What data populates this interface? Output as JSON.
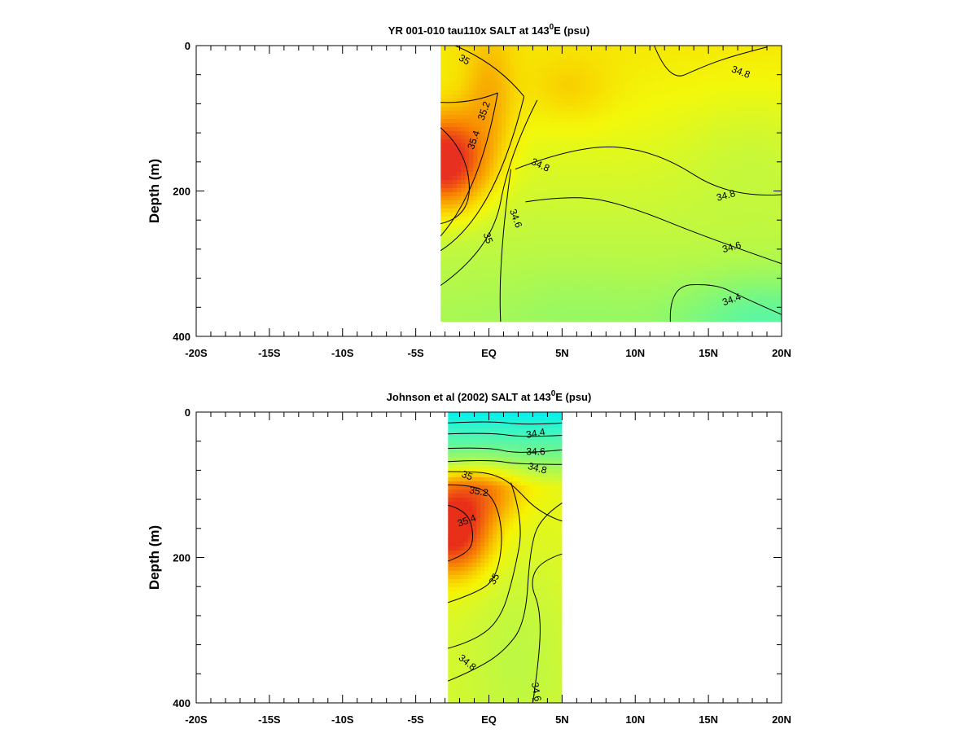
{
  "chart_data": [
    {
      "type": "heatmap",
      "title_prefix": "YR 001-010 tau110x SALT at 143",
      "title_sup": "0",
      "title_suffix": "E (psu)",
      "ylabel": "Depth (m)",
      "xlabel": "",
      "xlim": [
        -20,
        20
      ],
      "ylim": [
        400,
        0
      ],
      "y_inverted": true,
      "xticks": [
        {
          "v": -20,
          "label": "-20S"
        },
        {
          "v": -15,
          "label": "-15S"
        },
        {
          "v": -10,
          "label": "-10S"
        },
        {
          "v": -5,
          "label": "-5S"
        },
        {
          "v": 0,
          "label": "EQ"
        },
        {
          "v": 5,
          "label": "5N"
        },
        {
          "v": 10,
          "label": "10N"
        },
        {
          "v": 15,
          "label": "15N"
        },
        {
          "v": 20,
          "label": "20N"
        }
      ],
      "yticks": [
        {
          "v": 0,
          "label": "0"
        },
        {
          "v": 200,
          "label": "200"
        },
        {
          "v": 400,
          "label": "400"
        }
      ],
      "data_extent": {
        "x": [
          -3.3,
          20
        ],
        "y": [
          0,
          380
        ]
      },
      "colorscale": [
        {
          "v": 34.3,
          "color": "#44f7c8"
        },
        {
          "v": 34.45,
          "color": "#62f79a"
        },
        {
          "v": 34.6,
          "color": "#8ff86a"
        },
        {
          "v": 34.75,
          "color": "#c4f83c"
        },
        {
          "v": 34.85,
          "color": "#f3f80a"
        },
        {
          "v": 34.95,
          "color": "#f8d800"
        },
        {
          "v": 35.05,
          "color": "#f8b000"
        },
        {
          "v": 35.2,
          "color": "#f88000"
        },
        {
          "v": 35.3,
          "color": "#f05a10"
        },
        {
          "v": 35.45,
          "color": "#e83020"
        }
      ],
      "features": [
        {
          "x": 0,
          "y": 80,
          "sx": 1.8,
          "sy": 90,
          "a": 0.2
        },
        {
          "x": -3,
          "y": 160,
          "sx": 2.5,
          "sy": 60,
          "a": 0.75
        },
        {
          "x": 5.5,
          "y": 60,
          "sx": 3,
          "sy": 45,
          "a": 0.1
        },
        {
          "x": 18,
          "y": 140,
          "sx": 5,
          "sy": 90,
          "a": -0.05
        },
        {
          "x": 19,
          "y": 380,
          "sx": 6,
          "sy": 60,
          "a": -0.25
        },
        {
          "x": 6,
          "y": 360,
          "sx": 5,
          "sy": 60,
          "a": -0.05
        }
      ],
      "field_base": {
        "top": 34.9,
        "gradient": -0.0006
      },
      "contours": [
        {
          "label": "35",
          "points": [
            [
              -2.3,
              0
            ],
            [
              0.6,
              25
            ],
            [
              2.4,
              70
            ]
          ]
        },
        {
          "label": "35.2",
          "points": [
            [
              -3.3,
              78
            ],
            [
              -1.2,
              80
            ],
            [
              0.6,
              65
            ]
          ]
        },
        {
          "label": "35.4",
          "points": [
            [
              -3.3,
              113
            ],
            [
              -1.5,
              145
            ],
            [
              -1.2,
              235
            ],
            [
              -3.3,
              245
            ]
          ]
        },
        {
          "label": "35.2",
          "points": [
            [
              0.6,
              65
            ],
            [
              -0.6,
              200
            ],
            [
              -3.3,
              262
            ]
          ]
        },
        {
          "label": "35",
          "points": [
            [
              2.4,
              70
            ],
            [
              0.4,
              235
            ],
            [
              -3.3,
              282
            ]
          ]
        },
        {
          "label": "34.8",
          "points": [
            [
              3.3,
              75
            ],
            [
              1.4,
              150
            ],
            [
              0.2,
              280
            ],
            [
              -3.3,
              330
            ]
          ]
        },
        {
          "label": "34.6",
          "points": [
            [
              1.5,
              170
            ],
            [
              0.6,
              300
            ],
            [
              0.8,
              380
            ]
          ]
        },
        {
          "label": "34.8",
          "points": [
            [
              1.8,
              170
            ],
            [
              6.3,
              135
            ],
            [
              11.5,
              145
            ],
            [
              16.5,
              210
            ],
            [
              20,
              205
            ]
          ]
        },
        {
          "label": "34.8",
          "points": [
            [
              11.3,
              0
            ],
            [
              12.3,
              50
            ],
            [
              14.5,
              30
            ],
            [
              16.5,
              15
            ],
            [
              19,
              2
            ]
          ]
        },
        {
          "label": "34.6",
          "points": [
            [
              2.5,
              215
            ],
            [
              5.8,
              205
            ],
            [
              9.5,
              220
            ],
            [
              15,
              265
            ],
            [
              20,
              300
            ]
          ]
        },
        {
          "label": "34.4",
          "points": [
            [
              12.4,
              380
            ],
            [
              12.3,
              330
            ],
            [
              15.5,
              328
            ],
            [
              17.2,
              345
            ],
            [
              20,
              370
            ]
          ]
        }
      ],
      "contour_labels": [
        {
          "text": "35",
          "x": -1.7,
          "y": 20,
          "rot": 30
        },
        {
          "text": "35.2",
          "x": -0.3,
          "y": 90,
          "rot": -70
        },
        {
          "text": "35.4",
          "x": -1.0,
          "y": 130,
          "rot": -70
        },
        {
          "text": "34.8",
          "x": 3.5,
          "y": 165,
          "rot": 25
        },
        {
          "text": "34.6",
          "x": 1.8,
          "y": 238,
          "rot": 70
        },
        {
          "text": "35",
          "x": -0.1,
          "y": 265,
          "rot": 70
        },
        {
          "text": "34.8",
          "x": 16.2,
          "y": 207,
          "rot": -15
        },
        {
          "text": "34.8",
          "x": 17.2,
          "y": 37,
          "rot": 20
        },
        {
          "text": "34.6",
          "x": 16.6,
          "y": 278,
          "rot": -15
        },
        {
          "text": "34.4",
          "x": 16.6,
          "y": 350,
          "rot": -20
        }
      ]
    },
    {
      "type": "heatmap",
      "title_prefix": "Johnson et al (2002) SALT at 143",
      "title_sup": "0",
      "title_suffix": "E (psu)",
      "ylabel": "Depth (m)",
      "xlabel": "",
      "xlim": [
        -20,
        20
      ],
      "ylim": [
        400,
        0
      ],
      "y_inverted": true,
      "xticks": [
        {
          "v": -20,
          "label": "-20S"
        },
        {
          "v": -15,
          "label": "-15S"
        },
        {
          "v": -10,
          "label": "-10S"
        },
        {
          "v": -5,
          "label": "-5S"
        },
        {
          "v": 0,
          "label": "EQ"
        },
        {
          "v": 5,
          "label": "5N"
        },
        {
          "v": 10,
          "label": "10N"
        },
        {
          "v": 15,
          "label": "15N"
        },
        {
          "v": 20,
          "label": "20N"
        }
      ],
      "yticks": [
        {
          "v": 0,
          "label": "0"
        },
        {
          "v": 200,
          "label": "200"
        },
        {
          "v": 400,
          "label": "400"
        }
      ],
      "data_extent": {
        "x": [
          -2.8,
          5
        ],
        "y": [
          0,
          400
        ]
      },
      "colorscale": [
        {
          "v": 34.1,
          "color": "#00f0f0"
        },
        {
          "v": 34.3,
          "color": "#40f5c0"
        },
        {
          "v": 34.5,
          "color": "#6ff78e"
        },
        {
          "v": 34.65,
          "color": "#a4f85a"
        },
        {
          "v": 34.8,
          "color": "#d8f82a"
        },
        {
          "v": 34.9,
          "color": "#f6f400"
        },
        {
          "v": 35.0,
          "color": "#f8cc00"
        },
        {
          "v": 35.15,
          "color": "#f89000"
        },
        {
          "v": 35.3,
          "color": "#f06010"
        },
        {
          "v": 35.45,
          "color": "#e83018"
        }
      ],
      "features": [
        {
          "x": -2.5,
          "y": 160,
          "sx": 2.5,
          "sy": 60,
          "a": 0.75
        },
        {
          "x": 0,
          "y": 110,
          "sx": 2.5,
          "sy": 40,
          "a": 0.25
        },
        {
          "x": 2.0,
          "y": 320,
          "sx": 3.5,
          "sy": 130,
          "a": -0.08
        }
      ],
      "field_base": {
        "top": 34.1,
        "gradient": 0.0072,
        "cap": 34.85,
        "deep_gradient": -0.0002
      },
      "contours": [
        {
          "label": "34.4",
          "points": [
            [
              -2.8,
              15
            ],
            [
              0,
              12
            ],
            [
              2.5,
              18
            ],
            [
              5,
              15
            ]
          ]
        },
        {
          "label": "34.4",
          "points": [
            [
              -2.8,
              30
            ],
            [
              0,
              28
            ],
            [
              2.5,
              35
            ],
            [
              5,
              32
            ]
          ]
        },
        {
          "label": "34.6",
          "points": [
            [
              -2.8,
              50
            ],
            [
              0,
              48
            ],
            [
              2,
              58
            ],
            [
              5,
              52
            ]
          ]
        },
        {
          "label": "34.8",
          "points": [
            [
              -2.8,
              68
            ],
            [
              0,
              65
            ],
            [
              2,
              72
            ],
            [
              5,
              72
            ]
          ]
        },
        {
          "label": "35",
          "points": [
            [
              -2.8,
              82
            ],
            [
              -1,
              82
            ],
            [
              0.2,
              85
            ],
            [
              1.5,
              97
            ],
            [
              3.5,
              140
            ],
            [
              5,
              150
            ]
          ]
        },
        {
          "label": "35.2",
          "points": [
            [
              -2.8,
              100
            ],
            [
              -1,
              100
            ],
            [
              0.4,
              118
            ],
            [
              1.0,
              170
            ],
            [
              0.5,
              230
            ],
            [
              -1,
              250
            ],
            [
              -2.8,
              262
            ]
          ]
        },
        {
          "label": "35.4",
          "points": [
            [
              -2.8,
              128
            ],
            [
              -1.5,
              135
            ],
            [
              -1.0,
              170
            ],
            [
              -1.4,
              195
            ],
            [
              -2.8,
              205
            ]
          ]
        },
        {
          "label": "35",
          "points": [
            [
              1.5,
              97
            ],
            [
              2.4,
              150
            ],
            [
              1.7,
              225
            ],
            [
              0.8,
              285
            ],
            [
              -1,
              315
            ],
            [
              -2.8,
              325
            ]
          ]
        },
        {
          "label": "34.8",
          "points": [
            [
              5,
              125
            ],
            [
              3.5,
              145
            ],
            [
              2.8,
              190
            ],
            [
              2.5,
              290
            ],
            [
              1.0,
              330
            ],
            [
              -1,
              355
            ],
            [
              -2.8,
              370
            ]
          ]
        },
        {
          "label": "34.6",
          "points": [
            [
              5,
              195
            ],
            [
              3.5,
              205
            ],
            [
              2.8,
              235
            ],
            [
              3.5,
              270
            ],
            [
              3.5,
              330
            ],
            [
              3.0,
              400
            ]
          ]
        }
      ],
      "contour_labels": [
        {
          "text": "34.4",
          "x": 3.2,
          "y": 30,
          "rot": -10
        },
        {
          "text": "34.6",
          "x": 3.2,
          "y": 55,
          "rot": 0
        },
        {
          "text": "34.8",
          "x": 3.3,
          "y": 78,
          "rot": 15
        },
        {
          "text": "35",
          "x": -1.5,
          "y": 88,
          "rot": 20
        },
        {
          "text": "35.2",
          "x": -0.7,
          "y": 110,
          "rot": 10
        },
        {
          "text": "35.4",
          "x": -1.5,
          "y": 150,
          "rot": -20
        },
        {
          "text": "35",
          "x": 0.4,
          "y": 230,
          "rot": -60
        },
        {
          "text": "34.8",
          "x": -1.5,
          "y": 345,
          "rot": 40
        },
        {
          "text": "34.6",
          "x": 3.2,
          "y": 385,
          "rot": 80
        }
      ]
    }
  ]
}
